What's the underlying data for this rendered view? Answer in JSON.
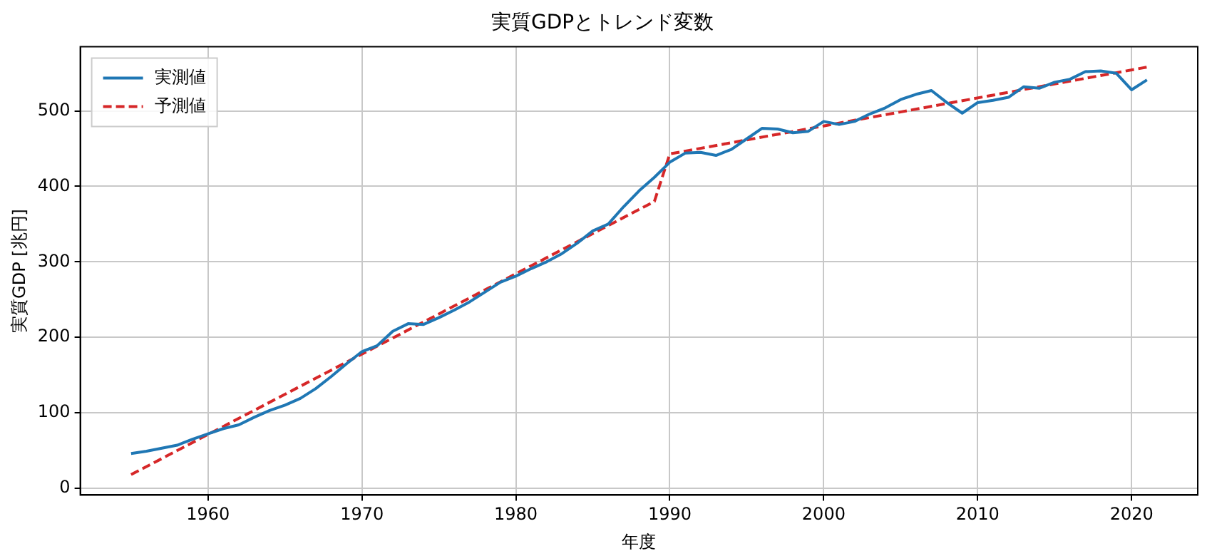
{
  "chart_data": {
    "type": "line",
    "title": "実質GDPとトレンド変数",
    "xlabel": "年度",
    "ylabel": "実質GDP [兆円]",
    "xlim": [
      1951.7,
      2024.3
    ],
    "xticks": [
      1960,
      1970,
      1980,
      1990,
      2000,
      2010,
      2020
    ],
    "ylim": [
      -9,
      585
    ],
    "yticks": [
      0,
      100,
      200,
      300,
      400,
      500
    ],
    "grid": true,
    "legend": "top left",
    "series": [
      {
        "name": "実測値",
        "color": "#1f77b4",
        "line_style": "solid",
        "x": [
          1955,
          1956,
          1957,
          1958,
          1959,
          1960,
          1961,
          1962,
          1963,
          1964,
          1965,
          1966,
          1967,
          1968,
          1969,
          1970,
          1971,
          1972,
          1973,
          1974,
          1975,
          1976,
          1977,
          1978,
          1979,
          1980,
          1981,
          1982,
          1983,
          1984,
          1985,
          1986,
          1987,
          1988,
          1989,
          1990,
          1991,
          1992,
          1993,
          1994,
          1995,
          1996,
          1997,
          1998,
          1999,
          2000,
          2001,
          2002,
          2003,
          2004,
          2005,
          2006,
          2007,
          2008,
          2009,
          2010,
          2011,
          2012,
          2013,
          2014,
          2015,
          2016,
          2017,
          2018,
          2019,
          2020,
          2021
        ],
        "values": [
          46,
          49,
          53,
          57,
          65,
          72,
          79,
          84,
          94,
          103,
          110,
          119,
          132,
          148,
          165,
          181,
          189,
          208,
          218,
          217,
          226,
          236,
          247,
          260,
          273,
          281,
          291,
          300,
          311,
          325,
          341,
          350,
          373,
          394,
          412,
          432,
          444,
          445,
          441,
          449,
          463,
          477,
          476,
          471,
          473,
          486,
          482,
          486,
          496,
          504,
          515,
          522,
          527,
          511,
          497,
          511,
          514,
          518,
          532,
          530,
          538,
          542,
          552,
          553,
          550,
          528,
          541
        ]
      },
      {
        "name": "予測値",
        "color": "#d62728",
        "line_style": "dashed",
        "x": [
          1955,
          1989,
          1990,
          2021
        ],
        "values": [
          18,
          380,
          443,
          558
        ]
      }
    ]
  }
}
